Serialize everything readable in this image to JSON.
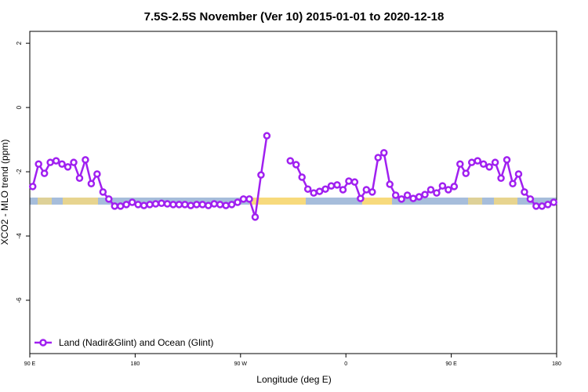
{
  "chart_data": {
    "type": "line",
    "title": "7.5S-2.5S November (Ver 10)   2015-01-01 to 2020-12-18",
    "x_label": "Longitude (deg E)",
    "y_label": "XCO2 - MLO trend (ppm)",
    "xlim": [
      90,
      540
    ],
    "xticks": [
      {
        "value": 90,
        "label": "90 E"
      },
      180,
      {
        "value": 270,
        "label": "90 W"
      },
      {
        "value": 360,
        "label": "0"
      },
      {
        "value": 450,
        "label": "90 E"
      },
      {
        "value": 540,
        "label": "180"
      }
    ],
    "ylim": [
      -7.66,
      2.37
    ],
    "yticks": [
      2,
      0,
      -2,
      -4,
      -6
    ],
    "legend": "bottom-left",
    "x": [
      92.5,
      97.5,
      102.5,
      107.5,
      112.5,
      117.5,
      122.5,
      127.5,
      132.5,
      137.5,
      142.5,
      147.5,
      152.5,
      157.5,
      162.5,
      167.5,
      172.5,
      177.5,
      182.5,
      187.5,
      192.5,
      197.5,
      202.5,
      207.5,
      212.5,
      217.5,
      222.5,
      227.5,
      232.5,
      237.5,
      242.5,
      247.5,
      252.5,
      257.5,
      262.5,
      267.5,
      272.5,
      277.5,
      282.5,
      287.5,
      292.5,
      297.5,
      302.5,
      307.5,
      312.5,
      317.5,
      322.5,
      327.5,
      332.5,
      337.5,
      342.5,
      347.5,
      352.5,
      357.5,
      362.5,
      367.5,
      372.5,
      377.5,
      382.5,
      387.5,
      392.5,
      397.5,
      402.5,
      407.5,
      412.5,
      417.5,
      422.5,
      427.5,
      432.5,
      437.5,
      442.5,
      447.5,
      452.5,
      457.5,
      462.5,
      467.5,
      472.5,
      477.5,
      482.5,
      487.5,
      492.5,
      497.5,
      502.5,
      507.5,
      512.5,
      517.5,
      522.5,
      527.5,
      532.5,
      537.5
    ],
    "series": [
      {
        "name": "Land (Nadir&Glint) and Ocean (Glint)",
        "color": "#a020f0",
        "values": [
          -2.46,
          -1.76,
          -2.05,
          -1.71,
          -1.66,
          -1.76,
          -1.85,
          -1.71,
          -2.2,
          -1.63,
          -2.37,
          -2.07,
          -2.63,
          -2.85,
          -3.07,
          -3.07,
          -3.02,
          -2.95,
          -3.02,
          -3.05,
          -3.02,
          -3.0,
          -2.98,
          -3.0,
          -3.02,
          -3.02,
          -3.02,
          -3.05,
          -3.02,
          -3.02,
          -3.05,
          -3.0,
          -3.02,
          -3.05,
          -3.02,
          -2.95,
          -2.85,
          -2.85,
          -3.41,
          -2.1,
          -0.88,
          null,
          null,
          null,
          -1.66,
          -1.78,
          -2.17,
          -2.54,
          -2.66,
          -2.61,
          -2.54,
          -2.44,
          -2.41,
          -2.56,
          -2.29,
          -2.32,
          -2.83,
          -2.56,
          -2.63,
          -1.56,
          -1.41,
          -2.39,
          -2.73,
          -2.85,
          -2.73,
          -2.83,
          -2.78,
          -2.71,
          -2.56,
          -2.66,
          -2.44,
          -2.56,
          -2.46,
          -1.76,
          -2.05,
          -1.71,
          -1.66,
          -1.76,
          -1.85,
          -1.71,
          -2.2,
          -1.63,
          -2.37,
          -2.07,
          -2.63,
          -2.85,
          -3.07,
          -3.07,
          -3.02,
          -2.95
        ]
      }
    ]
  }
}
